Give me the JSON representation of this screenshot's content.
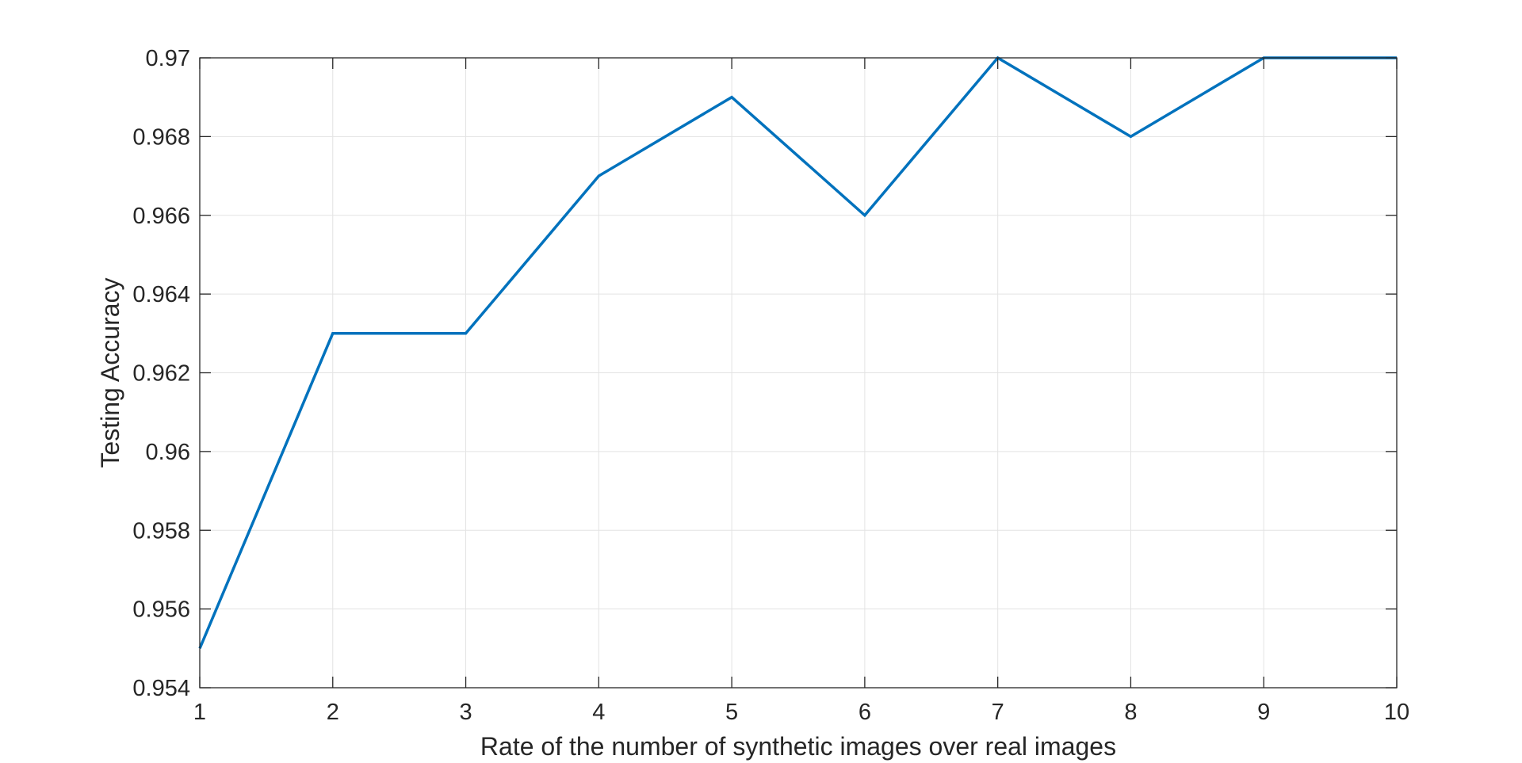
{
  "chart_data": {
    "type": "line",
    "title": "",
    "xlabel": "Rate of the number of synthetic images over real images",
    "ylabel": "Testing Accuracy",
    "x": [
      1,
      2,
      3,
      4,
      5,
      6,
      7,
      8,
      9,
      10
    ],
    "series": [
      {
        "values": [
          0.955,
          0.963,
          0.963,
          0.967,
          0.969,
          0.966,
          0.97,
          0.968,
          0.97,
          0.97
        ],
        "color": "#0072BD"
      }
    ],
    "xlim": [
      1,
      10
    ],
    "ylim": [
      0.954,
      0.97
    ],
    "xticks": [
      1,
      2,
      3,
      4,
      5,
      6,
      7,
      8,
      9,
      10
    ],
    "xtick_labels": [
      "1",
      "2",
      "3",
      "4",
      "5",
      "6",
      "7",
      "8",
      "9",
      "10"
    ],
    "yticks": [
      0.954,
      0.956,
      0.958,
      0.96,
      0.962,
      0.964,
      0.966,
      0.968,
      0.97
    ],
    "ytick_labels": [
      "0.954",
      "0.956",
      "0.958",
      "0.96",
      "0.962",
      "0.964",
      "0.966",
      "0.968",
      "0.97"
    ],
    "grid": true,
    "legend": "none"
  }
}
